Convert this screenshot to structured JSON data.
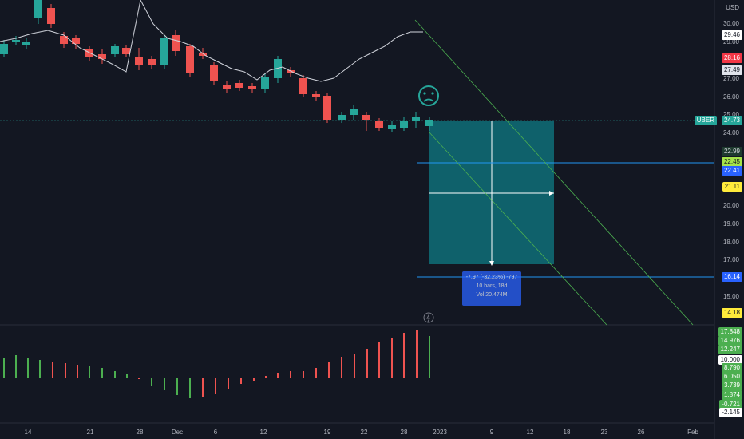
{
  "symbol": "UBER",
  "currency": "USD",
  "price_axis": {
    "ticks": [
      "30.00",
      "29.00",
      "27.00",
      "26.00",
      "25.00",
      "24.00",
      "20.00",
      "19.00",
      "18.00",
      "17.00",
      "15.00"
    ],
    "badges": [
      {
        "value": "29.46",
        "bg": "#ffffff",
        "fg": "#131722"
      },
      {
        "value": "28.16",
        "bg": "#f23645",
        "fg": "#ffffff"
      },
      {
        "value": "27.49",
        "bg": "#e0e3eb",
        "fg": "#131722"
      },
      {
        "value": "24.73",
        "bg": "#26a69a",
        "fg": "#ffffff",
        "label": "UBER"
      },
      {
        "value": "22.99",
        "bg": "#1e3a2f",
        "fg": "#d1d4dc"
      },
      {
        "value": "22.45",
        "bg": "#a5e34a",
        "fg": "#131722"
      },
      {
        "value": "22.41",
        "bg": "#2962ff",
        "fg": "#ffffff"
      },
      {
        "value": "21.11",
        "bg": "#ffeb3b",
        "fg": "#131722"
      },
      {
        "value": "16.14",
        "bg": "#2962ff",
        "fg": "#ffffff"
      },
      {
        "value": "14.18",
        "bg": "#ffeb3b",
        "fg": "#131722"
      }
    ]
  },
  "volume_axis": {
    "badges": [
      "17.848",
      "14.976",
      "12.247",
      "10.000",
      "8.790",
      "6.050",
      "3.739",
      "1.874",
      "-0.721",
      "-2.145"
    ]
  },
  "time_axis": [
    "14",
    "21",
    "28",
    "Dec",
    "6",
    "12",
    "19",
    "22",
    "28",
    "2023",
    "9",
    "12",
    "18",
    "23",
    "26",
    "Feb"
  ],
  "ruler": {
    "line1": "-7.97 (-32.23%) -797",
    "line2": "10 bars, 18d",
    "line3": "Vol 20.474M"
  },
  "emoji": "☹",
  "colors": {
    "up": "#26a69a",
    "down": "#ef5350",
    "box": "#0f6e78",
    "grid": "#1e222d"
  }
}
